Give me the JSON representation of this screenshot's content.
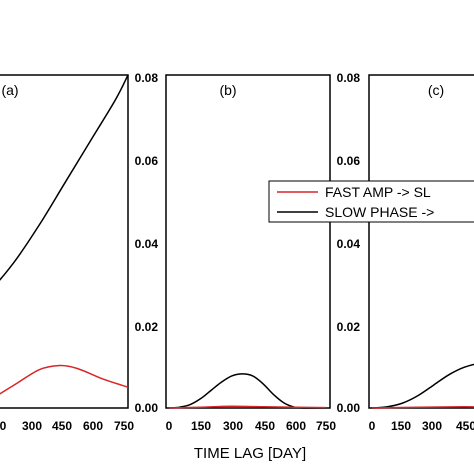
{
  "chart_data": {
    "type": "line",
    "xlabel": "TIME LAG [DAY]",
    "xlim": [
      0,
      750
    ],
    "ylim": [
      0,
      0.08
    ],
    "x_ticks": [
      "0",
      "150",
      "300",
      "450",
      "600",
      "750"
    ],
    "x_ticks_panel_a": [
      "0",
      "300",
      "450",
      "600",
      "750"
    ],
    "y_ticks": [
      "0.00",
      "0.02",
      "0.04",
      "0.06",
      "0.08"
    ],
    "legend": {
      "position": "upper-right of panel c",
      "entries": [
        {
          "label": "FAST AMP -> SL",
          "color": "#d62728"
        },
        {
          "label": "SLOW PHASE ->",
          "color": "#000000"
        }
      ]
    },
    "series_colors": {
      "red": "#d62728",
      "black": "#000000"
    },
    "panels": [
      {
        "label": "(a)",
        "series": [
          {
            "color": "black",
            "x": [
              0,
              100,
              200,
              300,
              400,
              500,
              600,
              700,
              750
            ],
            "y": [
              0.022,
              0.024,
              0.028,
              0.035,
              0.044,
              0.054,
              0.064,
              0.074,
              0.08
            ]
          },
          {
            "color": "red",
            "x": [
              0,
              100,
              200,
              300,
              400,
              480,
              550,
              650,
              750
            ],
            "y": [
              0.0,
              0.0005,
              0.002,
              0.0055,
              0.0092,
              0.0102,
              0.0095,
              0.007,
              0.005
            ]
          }
        ]
      },
      {
        "label": "(b)",
        "series": [
          {
            "color": "black",
            "x": [
              0,
              50,
              100,
              150,
              200,
              250,
              300,
              350,
              400,
              450,
              500,
              550,
              600,
              650,
              700,
              750
            ],
            "y": [
              0.0,
              0.0002,
              0.0008,
              0.0022,
              0.0042,
              0.0062,
              0.0077,
              0.0082,
              0.0077,
              0.0058,
              0.0032,
              0.0012,
              0.0002,
              0.0,
              0.0,
              0.0
            ]
          },
          {
            "color": "red",
            "x": [
              0,
              150,
              300,
              450,
              600,
              750
            ],
            "y": [
              0.0,
              0.0002,
              0.0004,
              0.0003,
              0.0002,
              0.0001
            ]
          }
        ]
      },
      {
        "label": "(c)",
        "series": [
          {
            "color": "black",
            "x": [
              0,
              50,
              100,
              150,
              200,
              250,
              300,
              350,
              400,
              450,
              500
            ],
            "y": [
              0.0,
              0.0003,
              0.0012,
              0.003,
              0.0055,
              0.008,
              0.0098,
              0.0108,
              0.0113,
              0.0117,
              0.012
            ]
          },
          {
            "color": "red",
            "x": [
              0,
              150,
              300,
              450,
              500
            ],
            "y": [
              0.0,
              0.0002,
              0.0003,
              0.0002,
              0.0002
            ]
          }
        ]
      }
    ]
  }
}
